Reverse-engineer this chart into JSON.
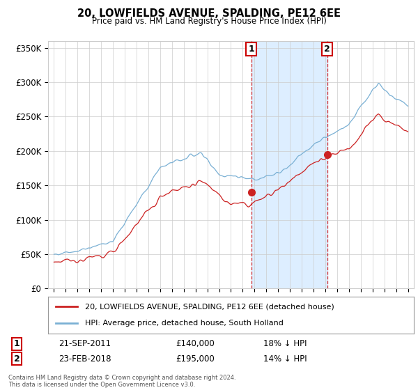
{
  "title": "20, LOWFIELDS AVENUE, SPALDING, PE12 6EE",
  "subtitle": "Price paid vs. HM Land Registry's House Price Index (HPI)",
  "ylim": [
    0,
    360000
  ],
  "yticks": [
    0,
    50000,
    100000,
    150000,
    200000,
    250000,
    300000,
    350000
  ],
  "ytick_labels": [
    "£0",
    "£50K",
    "£100K",
    "£150K",
    "£200K",
    "£250K",
    "£300K",
    "£350K"
  ],
  "transaction1": {
    "date_num": 2011.73,
    "price": 140000,
    "label": "1",
    "date_str": "21-SEP-2011",
    "pct": "18% ↓ HPI"
  },
  "transaction2": {
    "date_num": 2018.15,
    "price": 195000,
    "label": "2",
    "date_str": "23-FEB-2018",
    "pct": "14% ↓ HPI"
  },
  "hpi_color": "#7ab0d4",
  "shade_color": "#ddeeff",
  "price_color": "#cc2222",
  "grid_color": "#cccccc",
  "background_color": "#ffffff",
  "legend_label_price": "20, LOWFIELDS AVENUE, SPALDING, PE12 6EE (detached house)",
  "legend_label_hpi": "HPI: Average price, detached house, South Holland",
  "footer": "Contains HM Land Registry data © Crown copyright and database right 2024.\nThis data is licensed under the Open Government Licence v3.0.",
  "xmin": 1994.5,
  "xmax": 2025.5,
  "xticks": [
    1995,
    1996,
    1997,
    1998,
    1999,
    2000,
    2001,
    2002,
    2003,
    2004,
    2005,
    2006,
    2007,
    2008,
    2009,
    2010,
    2011,
    2012,
    2013,
    2014,
    2015,
    2016,
    2017,
    2018,
    2019,
    2020,
    2021,
    2022,
    2023,
    2024,
    2025
  ]
}
